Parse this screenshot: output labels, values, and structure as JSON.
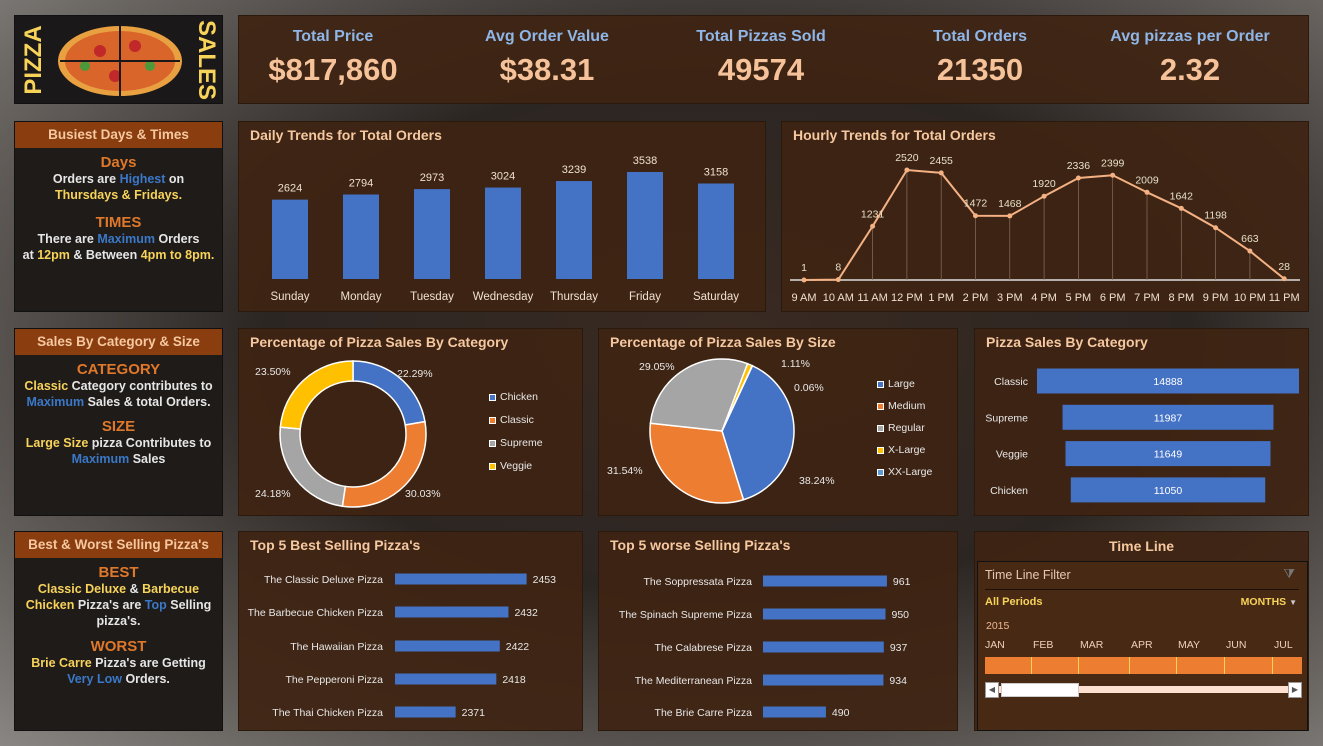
{
  "logo": {
    "left": "PIZZA",
    "right": "SALES"
  },
  "kpis": [
    {
      "label": "Total Price",
      "value": "$817,860"
    },
    {
      "label": "Avg Order Value",
      "value": "$38.31"
    },
    {
      "label": "Total Pizzas Sold",
      "value": "49574"
    },
    {
      "label": "Total Orders",
      "value": "21350"
    },
    {
      "label": "Avg pizzas per Order",
      "value": "2.32"
    }
  ],
  "busiest": {
    "title": "Busiest Days & Times",
    "days_h": "Days",
    "d1": "Orders are ",
    "d2": "Highest",
    "d3": " on",
    "d4": "Thursdays & Fridays.",
    "times_h": "TIMES",
    "t1": "There are ",
    "t2": "Maximum",
    "t3": " Orders",
    "t4": "at ",
    "t5": "12pm",
    "t6": " & Between ",
    "t7": "4pm to 8pm."
  },
  "catsize": {
    "title": "Sales By Category & Size",
    "cat_h": "CATEGORY",
    "c1": "Classic",
    "c2": " Category contributes to ",
    "c3": "Maximum",
    "c4": " Sales & total Orders.",
    "size_h": "SIZE",
    "s1": "Large Size",
    "s2": " pizza Contributes to ",
    "s3": "Maximum",
    "s4": " Sales"
  },
  "bestworst": {
    "title": "Best & Worst Selling Pizza's",
    "best_h": "BEST",
    "b1": "Classic Deluxe",
    "b2": " & ",
    "b3": "Barbecue Chicken",
    "b4": " Pizza's are ",
    "b5": "Top",
    "b6": " Selling pizza's.",
    "worst_h": "WORST",
    "w1": "Brie Carre",
    "w2": " Pizza's are Getting ",
    "w3": "Very Low",
    "w4": " Orders."
  },
  "colors": {
    "blue": "#4472c4",
    "orange": "#ed7d31",
    "gray": "#a5a5a5",
    "yellow": "#ffc000",
    "line": "#f4b183"
  },
  "chart_data": [
    {
      "type": "bar",
      "title": "Daily Trends for Total Orders",
      "categories": [
        "Sunday",
        "Monday",
        "Tuesday",
        "Wednesday",
        "Thursday",
        "Friday",
        "Saturday"
      ],
      "values": [
        2624,
        2794,
        2973,
        3024,
        3239,
        3538,
        3158
      ]
    },
    {
      "type": "line",
      "title": "Hourly Trends for Total Orders",
      "categories": [
        "9 AM",
        "10 AM",
        "11 AM",
        "12 PM",
        "1 PM",
        "2 PM",
        "3 PM",
        "4 PM",
        "5 PM",
        "6 PM",
        "7 PM",
        "8 PM",
        "9 PM",
        "10 PM",
        "11 PM"
      ],
      "values": [
        1,
        8,
        1231,
        2520,
        2455,
        1472,
        1468,
        1920,
        2336,
        2399,
        2009,
        1642,
        1198,
        663,
        28
      ]
    },
    {
      "type": "pie",
      "title": "Percentage of Pizza Sales By Category",
      "donut": true,
      "categories": [
        "Chicken",
        "Classic",
        "Supreme",
        "Veggie"
      ],
      "values": [
        22.29,
        30.03,
        24.18,
        23.5
      ],
      "labels": [
        "22.29%",
        "30.03%",
        "24.18%",
        "23.50%"
      ],
      "legend": "right"
    },
    {
      "type": "pie",
      "title": "Percentage of Pizza Sales By Size",
      "categories": [
        "Large",
        "Medium",
        "Regular",
        "X-Large",
        "XX-Large"
      ],
      "values": [
        38.24,
        31.54,
        29.05,
        1.11,
        0.06
      ],
      "labels": [
        "38.24%",
        "31.54%",
        "29.05%",
        "1.11%",
        "0.06%"
      ],
      "legend": "right"
    },
    {
      "type": "bar",
      "orientation": "funnel",
      "title": "Pizza Sales By Category",
      "categories": [
        "Classic",
        "Supreme",
        "Veggie",
        "Chicken"
      ],
      "values": [
        14888,
        11987,
        11649,
        11050
      ]
    },
    {
      "type": "bar",
      "orientation": "horizontal",
      "title": "Top 5 Best Selling Pizza's",
      "categories": [
        "The Classic Deluxe Pizza",
        "The Barbecue Chicken Pizza",
        "The Hawaiian Pizza",
        "The Pepperoni Pizza",
        "The Thai Chicken Pizza"
      ],
      "values": [
        2453,
        2432,
        2422,
        2418,
        2371
      ],
      "xlim": [
        2300,
        2455
      ]
    },
    {
      "type": "bar",
      "orientation": "horizontal",
      "title": "Top 5 worse Selling Pizza's",
      "categories": [
        "The Soppressata Pizza",
        "The Spinach Supreme Pizza",
        "The Calabrese Pizza",
        "The Mediterranean Pizza",
        "The Brie Carre Pizza"
      ],
      "values": [
        961,
        950,
        937,
        934,
        490
      ],
      "xlim": [
        0,
        961
      ]
    }
  ],
  "timeline": {
    "title": "Time Line",
    "filter_label": "Time Line Filter",
    "period": "All Periods",
    "level": "MONTHS",
    "year": "2015",
    "months": [
      "JAN",
      "FEB",
      "MAR",
      "APR",
      "MAY",
      "JUN",
      "JUL"
    ]
  }
}
